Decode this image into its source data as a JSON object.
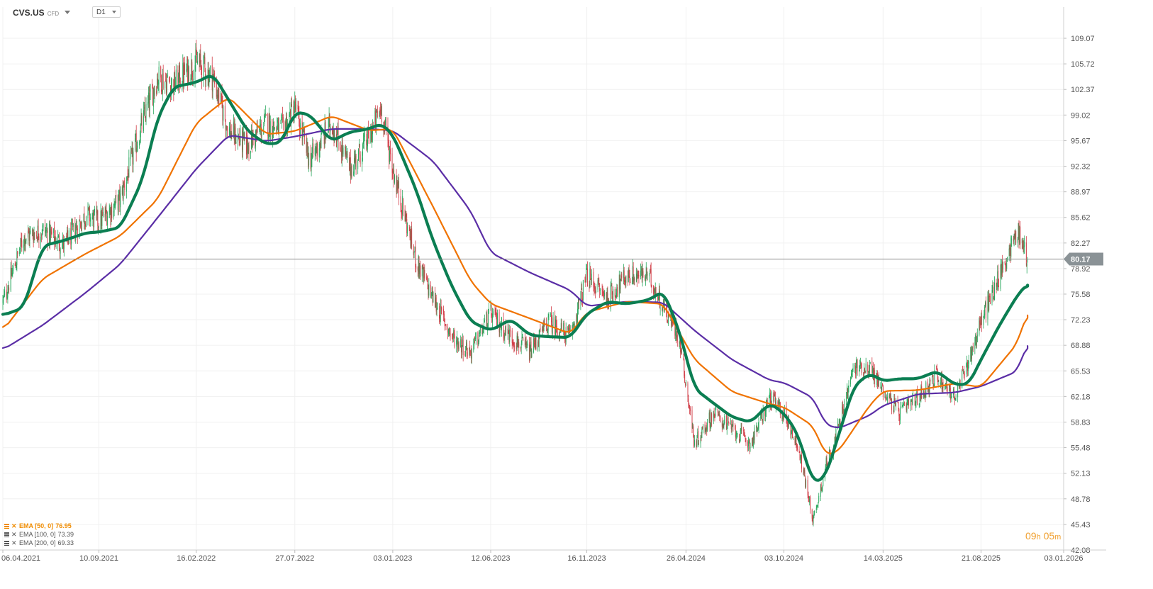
{
  "header": {
    "symbol": "CVS.US",
    "instrument_type": "CFD",
    "timeframe": "D1"
  },
  "timer": {
    "h_value": "09",
    "h_unit": "h",
    "m_value": "05",
    "m_unit": "m"
  },
  "legend": [
    {
      "label": "EMA [50, 0]",
      "value": "76.95",
      "color": "#f08c00"
    },
    {
      "label": "EMA [100, 0]",
      "value": "73.39",
      "color": "#555555"
    },
    {
      "label": "EMA [200, 0]",
      "value": "69.33",
      "color": "#555555"
    }
  ],
  "colors": {
    "up_candle": "#26a65b",
    "down_candle": "#d13b45",
    "ema50": "#0b7e52",
    "ema100": "#f07300",
    "ema200": "#5b2ea6",
    "price_line": "#888888",
    "price_tag": "#8a9296"
  },
  "chart_data": {
    "type": "candlestick",
    "title": "",
    "current_price": 80.17,
    "y_ticks": [
      "109.07",
      "105.72",
      "102.37",
      "99.02",
      "95.67",
      "92.32",
      "88.97",
      "85.62",
      "82.27",
      "78.92",
      "75.58",
      "72.23",
      "68.88",
      "65.53",
      "62.18",
      "58.83",
      "55.48",
      "52.13",
      "48.78",
      "45.43",
      "42.08"
    ],
    "ylim": [
      42.08,
      112.0
    ],
    "x_ticks": [
      "06.04.2021",
      "10.09.2021",
      "16.02.2022",
      "27.07.2022",
      "03.01.2023",
      "12.06.2023",
      "16.11.2023",
      "26.04.2024",
      "03.10.2024",
      "14.03.2025",
      "21.08.2025",
      "03.01.2026"
    ],
    "x_range": [
      "2021-04-06",
      "2026-01-03"
    ],
    "price_path": {
      "dates": [
        "2021-04-06",
        "2021-05-10",
        "2021-06-10",
        "2021-07-15",
        "2021-08-20",
        "2021-09-10",
        "2021-10-15",
        "2021-11-20",
        "2021-12-15",
        "2022-01-10",
        "2022-02-16",
        "2022-03-15",
        "2022-04-10",
        "2022-05-10",
        "2022-06-10",
        "2022-07-05",
        "2022-07-27",
        "2022-08-20",
        "2022-09-25",
        "2022-10-25",
        "2022-11-25",
        "2022-12-15",
        "2023-01-03",
        "2023-02-10",
        "2023-03-10",
        "2023-04-10",
        "2023-05-10",
        "2023-06-12",
        "2023-07-15",
        "2023-08-15",
        "2023-09-15",
        "2023-10-20",
        "2023-11-16",
        "2023-12-20",
        "2024-01-20",
        "2024-02-25",
        "2024-03-20",
        "2024-04-15",
        "2024-05-10",
        "2024-06-10",
        "2024-07-10",
        "2024-08-10",
        "2024-09-10",
        "2024-10-03",
        "2024-10-25",
        "2024-11-20",
        "2024-12-10",
        "2024-12-31",
        "2025-01-25",
        "2025-02-20",
        "2025-03-14",
        "2025-04-10",
        "2025-05-10",
        "2025-06-10",
        "2025-07-10",
        "2025-08-01",
        "2025-08-21",
        "2025-09-20",
        "2025-10-20",
        "2025-11-05"
      ],
      "close": [
        74.5,
        83,
        84,
        82,
        86,
        85,
        88,
        98,
        104,
        103,
        106,
        104,
        97,
        95,
        98,
        97,
        100,
        93,
        98,
        92,
        96,
        100,
        92,
        80,
        75,
        70,
        68,
        73,
        70,
        68,
        72,
        70,
        78,
        75,
        78,
        78,
        74,
        70,
        56,
        60,
        58,
        56,
        62,
        60,
        56,
        46,
        53,
        58,
        66,
        66,
        63,
        60,
        62,
        65,
        62,
        67,
        72,
        78,
        84,
        80.17
      ]
    },
    "ema_series": [
      {
        "name": "EMA [50, 0]",
        "last": 76.95,
        "dates": [
          "2021-04-06",
          "2021-05-10",
          "2021-06-10",
          "2021-07-15",
          "2021-08-20",
          "2021-09-10",
          "2021-10-15",
          "2021-11-20",
          "2021-12-15",
          "2022-01-10",
          "2022-02-16",
          "2022-03-15",
          "2022-04-10",
          "2022-05-10",
          "2022-06-10",
          "2022-07-05",
          "2022-07-27",
          "2022-08-20",
          "2022-09-25",
          "2022-10-25",
          "2022-11-25",
          "2022-12-15",
          "2023-01-03",
          "2023-02-10",
          "2023-03-10",
          "2023-04-10",
          "2023-05-10",
          "2023-06-12",
          "2023-07-15",
          "2023-08-15",
          "2023-09-15",
          "2023-10-20",
          "2023-11-16",
          "2023-12-20",
          "2024-01-20",
          "2024-02-25",
          "2024-03-20",
          "2024-04-15",
          "2024-05-10",
          "2024-06-10",
          "2024-07-10",
          "2024-08-10",
          "2024-09-10",
          "2024-10-03",
          "2024-10-25",
          "2024-11-20",
          "2024-12-10",
          "2024-12-31",
          "2025-01-25",
          "2025-02-20",
          "2025-03-14",
          "2025-04-10",
          "2025-05-10",
          "2025-06-10",
          "2025-07-10",
          "2025-08-01",
          "2025-08-21",
          "2025-09-20",
          "2025-10-20",
          "2025-11-05"
        ],
        "values": [
          72.8,
          73.8,
          81.9,
          82.6,
          83.6,
          83.7,
          84.3,
          90.5,
          98.7,
          102.7,
          103.3,
          104.4,
          101.0,
          97.0,
          95.2,
          95.4,
          99.4,
          99.1,
          95.6,
          96.8,
          97.2,
          97.9,
          96.5,
          89.3,
          82.5,
          76.5,
          72.0,
          70.8,
          72.3,
          70.2,
          70.0,
          69.9,
          73.0,
          74.6,
          74.3,
          74.8,
          76.0,
          70.8,
          63.2,
          61.3,
          59.5,
          58.8,
          61.3,
          60.0,
          57.4,
          50.8,
          51.7,
          57.0,
          63.5,
          65.2,
          64.2,
          64.5,
          64.5,
          65.5,
          63.7,
          63.8,
          67.0,
          71.5,
          75.5,
          76.95
        ]
      },
      {
        "name": "EMA [100, 0]",
        "last": 73.39,
        "dates": [
          "2021-04-06",
          "2021-06-10",
          "2021-08-20",
          "2021-10-15",
          "2021-12-15",
          "2022-02-16",
          "2022-04-10",
          "2022-06-10",
          "2022-07-27",
          "2022-09-25",
          "2022-11-25",
          "2023-01-03",
          "2023-03-10",
          "2023-05-10",
          "2023-06-12",
          "2023-08-15",
          "2023-10-20",
          "2023-11-16",
          "2024-01-20",
          "2024-03-20",
          "2024-05-10",
          "2024-07-10",
          "2024-09-10",
          "2024-10-03",
          "2024-11-20",
          "2024-12-10",
          "2024-12-31",
          "2025-02-20",
          "2025-03-14",
          "2025-05-10",
          "2025-07-10",
          "2025-08-21",
          "2025-10-20",
          "2025-11-05"
        ],
        "values": [
          70.8,
          77.6,
          80.9,
          83.2,
          88.0,
          98.0,
          101.4,
          96.5,
          96.9,
          98.9,
          97.0,
          97.2,
          87.0,
          77.3,
          74.3,
          72.4,
          70.4,
          73.2,
          74.6,
          74.3,
          67.0,
          62.8,
          61.2,
          60.8,
          58.3,
          54.5,
          55.0,
          61.0,
          62.9,
          63.0,
          63.9,
          63.4,
          69.2,
          73.39
        ]
      },
      {
        "name": "EMA [200, 0]",
        "last": 69.33,
        "dates": [
          "2021-04-06",
          "2021-06-10",
          "2021-08-20",
          "2021-10-15",
          "2021-12-15",
          "2022-02-16",
          "2022-04-10",
          "2022-06-10",
          "2022-07-27",
          "2022-09-25",
          "2022-11-25",
          "2023-01-03",
          "2023-03-10",
          "2023-05-10",
          "2023-06-12",
          "2023-08-15",
          "2023-10-20",
          "2023-11-16",
          "2024-01-20",
          "2024-03-20",
          "2024-05-10",
          "2024-07-10",
          "2024-09-10",
          "2024-10-03",
          "2024-11-20",
          "2024-12-10",
          "2024-12-31",
          "2025-02-20",
          "2025-03-14",
          "2025-05-10",
          "2025-07-10",
          "2025-08-21",
          "2025-10-20",
          "2025-11-05"
        ],
        "values": [
          68.3,
          71.5,
          75.8,
          79.5,
          85.6,
          92.0,
          96.4,
          95.6,
          96.2,
          97.2,
          97.2,
          97.0,
          93.0,
          86.5,
          81.0,
          78.4,
          76.1,
          74.0,
          74.6,
          74.5,
          70.8,
          67.0,
          64.3,
          64.0,
          62.0,
          58.5,
          58.0,
          59.7,
          61.0,
          62.5,
          62.7,
          63.5,
          65.5,
          69.33
        ]
      }
    ]
  }
}
